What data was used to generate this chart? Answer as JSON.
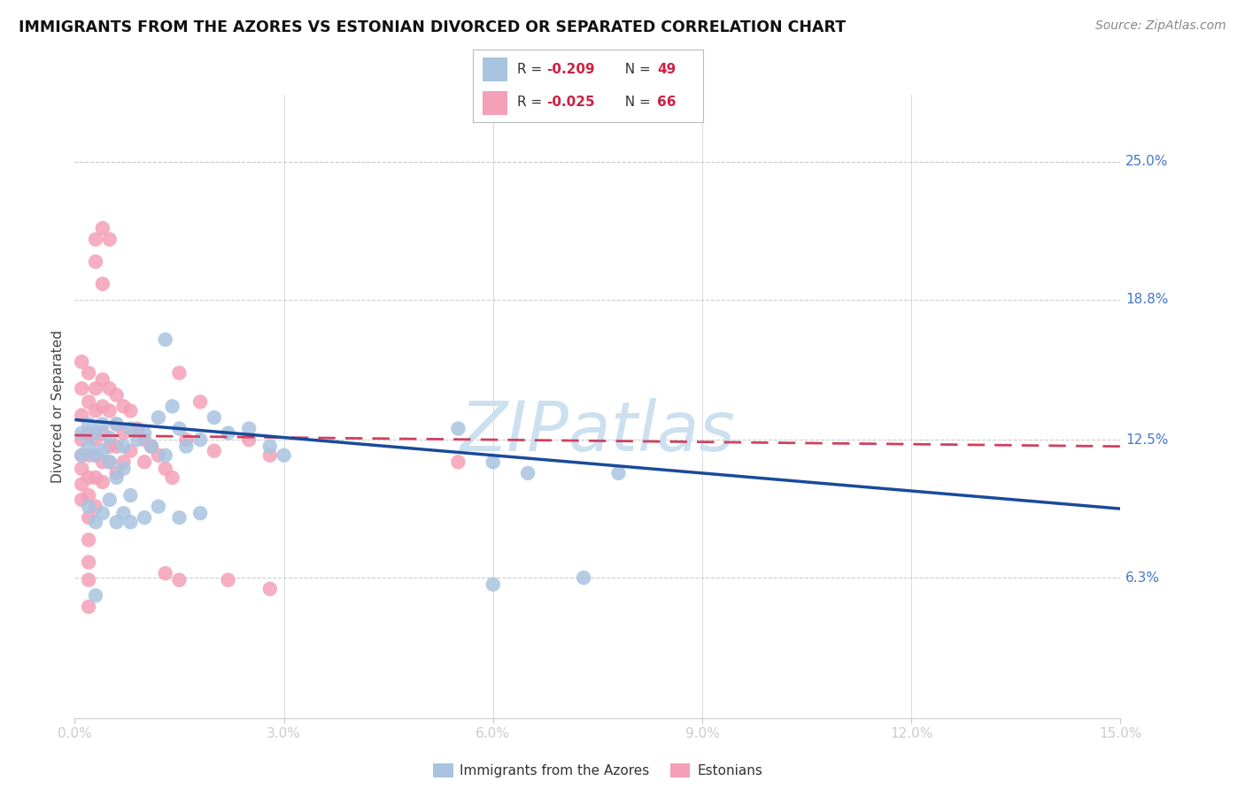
{
  "title": "IMMIGRANTS FROM THE AZORES VS ESTONIAN DIVORCED OR SEPARATED CORRELATION CHART",
  "source": "Source: ZipAtlas.com",
  "ylabel": "Divorced or Separated",
  "xmin": 0.0,
  "xmax": 0.15,
  "ymin": 0.0,
  "ymax": 0.28,
  "ytick_values": [
    0.25,
    0.188,
    0.125,
    0.063
  ],
  "ytick_labels": [
    "25.0%",
    "18.8%",
    "12.5%",
    "6.3%"
  ],
  "xtick_values": [
    0.0,
    0.03,
    0.06,
    0.09,
    0.12,
    0.15
  ],
  "xtick_labels": [
    "0.0%",
    "3.0%",
    "6.0%",
    "9.0%",
    "12.0%",
    "15.0%"
  ],
  "blue_R": -0.209,
  "blue_N": 49,
  "pink_R": -0.025,
  "pink_N": 66,
  "blue_dot_color": "#a8c4e0",
  "pink_dot_color": "#f4a0b8",
  "blue_line_color": "#1a4a9a",
  "pink_line_color": "#d04060",
  "grid_color": "#cccccc",
  "tick_color": "#4477cc",
  "title_color": "#111111",
  "source_color": "#888888",
  "watermark_color": "#cce0f0",
  "blue_dots_x": [
    0.001,
    0.001,
    0.002,
    0.002,
    0.003,
    0.003,
    0.004,
    0.004,
    0.005,
    0.005,
    0.006,
    0.006,
    0.007,
    0.007,
    0.008,
    0.008,
    0.009,
    0.01,
    0.011,
    0.012,
    0.013,
    0.014,
    0.015,
    0.016,
    0.018,
    0.02,
    0.022,
    0.025,
    0.028,
    0.03,
    0.002,
    0.003,
    0.004,
    0.005,
    0.006,
    0.007,
    0.008,
    0.01,
    0.012,
    0.015,
    0.018,
    0.055,
    0.06,
    0.065,
    0.073,
    0.078,
    0.06,
    0.013,
    0.003
  ],
  "blue_dots_y": [
    0.128,
    0.118,
    0.132,
    0.122,
    0.128,
    0.118,
    0.132,
    0.12,
    0.126,
    0.115,
    0.132,
    0.108,
    0.122,
    0.112,
    0.13,
    0.1,
    0.125,
    0.128,
    0.122,
    0.135,
    0.118,
    0.14,
    0.13,
    0.122,
    0.125,
    0.135,
    0.128,
    0.13,
    0.122,
    0.118,
    0.095,
    0.088,
    0.092,
    0.098,
    0.088,
    0.092,
    0.088,
    0.09,
    0.095,
    0.09,
    0.092,
    0.13,
    0.115,
    0.11,
    0.063,
    0.11,
    0.06,
    0.17,
    0.055
  ],
  "pink_dots_x": [
    0.001,
    0.001,
    0.001,
    0.001,
    0.001,
    0.001,
    0.001,
    0.001,
    0.002,
    0.002,
    0.002,
    0.002,
    0.002,
    0.002,
    0.002,
    0.003,
    0.003,
    0.003,
    0.003,
    0.003,
    0.003,
    0.004,
    0.004,
    0.004,
    0.004,
    0.004,
    0.005,
    0.005,
    0.005,
    0.005,
    0.006,
    0.006,
    0.006,
    0.006,
    0.007,
    0.007,
    0.007,
    0.008,
    0.008,
    0.009,
    0.01,
    0.01,
    0.011,
    0.012,
    0.013,
    0.014,
    0.015,
    0.016,
    0.018,
    0.02,
    0.025,
    0.028,
    0.003,
    0.003,
    0.004,
    0.005,
    0.004,
    0.002,
    0.002,
    0.002,
    0.002,
    0.015,
    0.028,
    0.013,
    0.055,
    0.022
  ],
  "pink_dots_y": [
    0.16,
    0.148,
    0.136,
    0.125,
    0.118,
    0.112,
    0.105,
    0.098,
    0.155,
    0.142,
    0.128,
    0.118,
    0.108,
    0.1,
    0.09,
    0.148,
    0.138,
    0.125,
    0.118,
    0.108,
    0.095,
    0.152,
    0.14,
    0.128,
    0.115,
    0.106,
    0.148,
    0.138,
    0.122,
    0.115,
    0.145,
    0.132,
    0.122,
    0.11,
    0.14,
    0.128,
    0.115,
    0.138,
    0.12,
    0.13,
    0.125,
    0.115,
    0.122,
    0.118,
    0.112,
    0.108,
    0.155,
    0.125,
    0.142,
    0.12,
    0.125,
    0.118,
    0.215,
    0.205,
    0.22,
    0.215,
    0.195,
    0.062,
    0.05,
    0.07,
    0.08,
    0.062,
    0.058,
    0.065,
    0.115,
    0.062
  ]
}
